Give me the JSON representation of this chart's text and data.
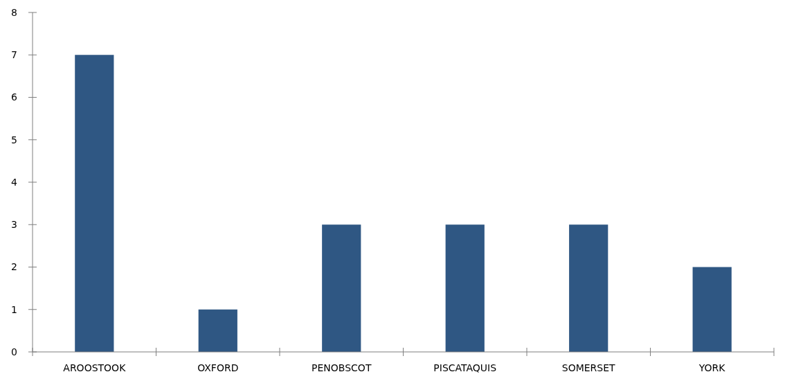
{
  "chart_data": {
    "type": "bar",
    "categories": [
      "AROOSTOOK",
      "OXFORD",
      "PENOBSCOT",
      "PISCATAQUIS",
      "SOMERSET",
      "YORK"
    ],
    "values": [
      7,
      1,
      3,
      3,
      3,
      2
    ],
    "color": "#2f5783",
    "ylim": [
      0,
      8
    ],
    "yticks": [
      0,
      1,
      2,
      3,
      4,
      5,
      6,
      7,
      8
    ],
    "grid": false
  }
}
